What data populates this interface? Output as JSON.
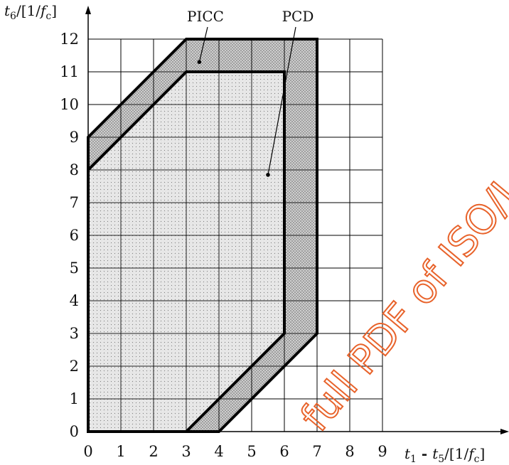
{
  "chart_data": {
    "type": "area",
    "x_axis": {
      "label_var": "t",
      "label_sub1": "1",
      "label_dash": " - ",
      "label_var2": "t",
      "label_sub2": "5",
      "label_unit_open": "/[1/",
      "label_unit_var": "f",
      "label_unit_sub": "c",
      "label_unit_close": "]",
      "range": [
        0,
        9
      ],
      "ticks": [
        "0",
        "1",
        "2",
        "3",
        "4",
        "5",
        "6",
        "7",
        "8",
        "9"
      ]
    },
    "y_axis": {
      "label_var": "t",
      "label_sub": "6",
      "label_unit_open": "/[1/",
      "label_unit_var": "f",
      "label_unit_sub": "c",
      "label_unit_close": "]",
      "range": [
        0,
        12
      ],
      "ticks": [
        "0",
        "1",
        "2",
        "3",
        "4",
        "5",
        "6",
        "7",
        "8",
        "9",
        "10",
        "11",
        "12"
      ]
    },
    "grid": true,
    "regions": [
      {
        "name": "PICC",
        "polygon": [
          [
            0,
            0
          ],
          [
            4,
            0
          ],
          [
            7,
            3
          ],
          [
            7,
            12
          ],
          [
            3,
            12
          ],
          [
            0,
            9
          ]
        ],
        "label_anchor": [
          3.4,
          11.3
        ]
      },
      {
        "name": "PCD",
        "polygon": [
          [
            0,
            0
          ],
          [
            3,
            0
          ],
          [
            6,
            3
          ],
          [
            6,
            11
          ],
          [
            3,
            11
          ],
          [
            0,
            8
          ]
        ],
        "label_anchor": [
          5.5,
          7.85
        ]
      }
    ]
  },
  "watermark": "full PDF of ISO/I",
  "colors": {
    "outer_fill": "#b8b8b8",
    "inner_fill": "#dcdcdc",
    "line": "#000000",
    "watermark": "#e8632b"
  }
}
